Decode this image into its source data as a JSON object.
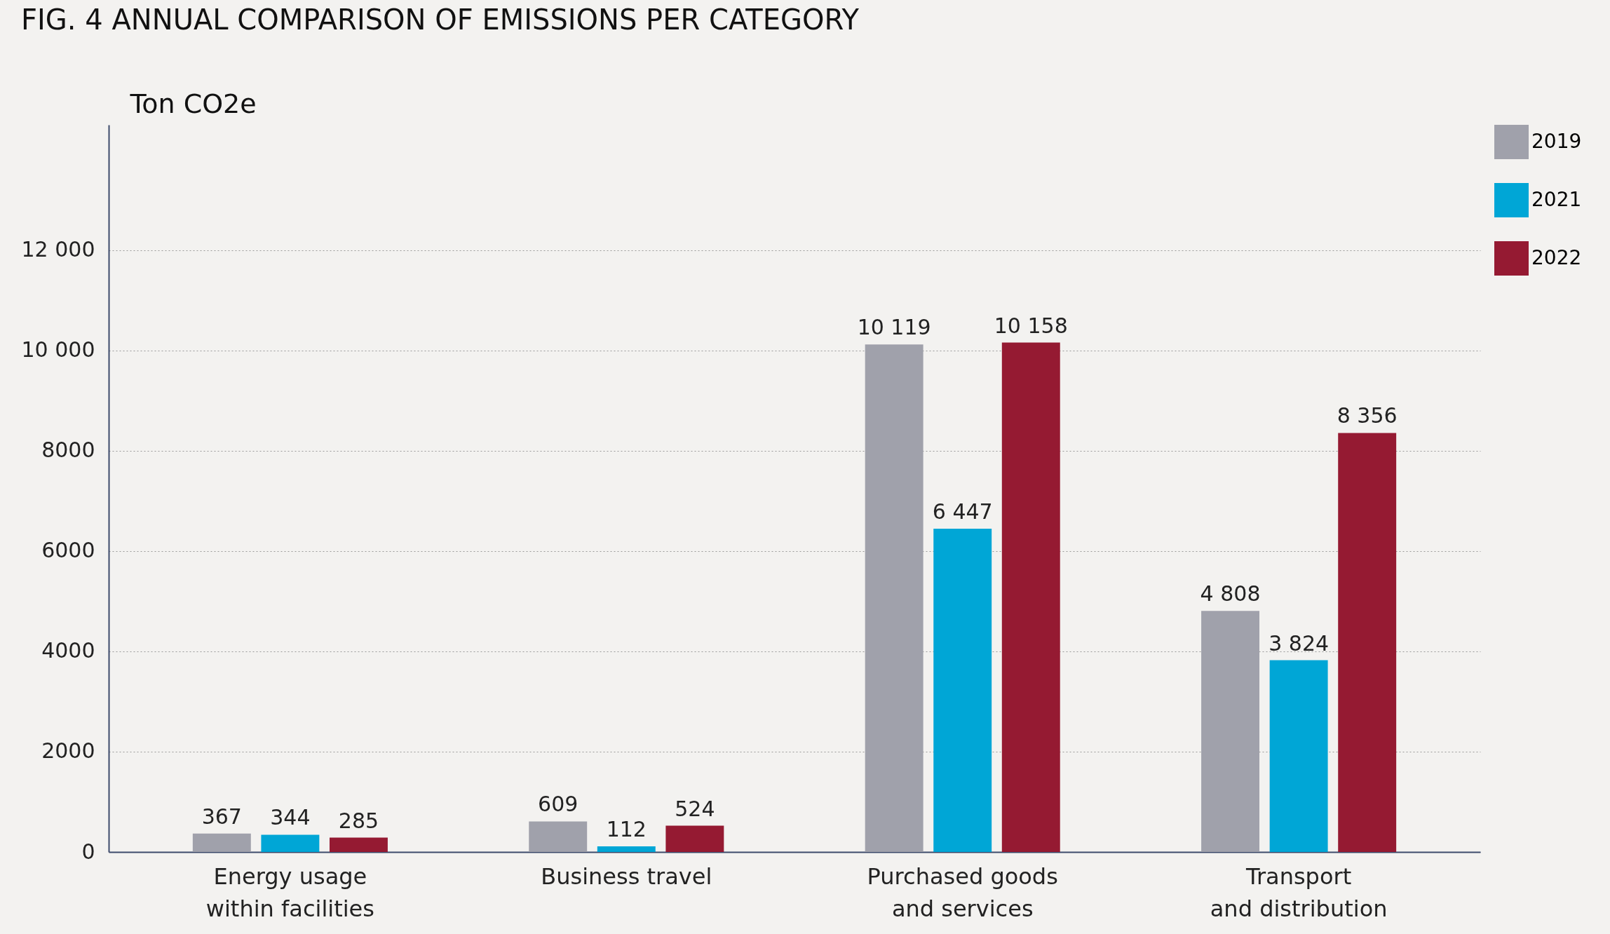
{
  "chart_data": {
    "type": "bar",
    "title": "FIG. 4 ANNUAL COMPARISON OF EMISSIONS PER CATEGORY",
    "ylabel": "Ton CO2e",
    "categories": [
      "Energy usage\nwithin facilities",
      "Business travel",
      "Purchased goods\nand services",
      "Transport\nand distribution"
    ],
    "series": [
      {
        "name": "2019",
        "color": "#a0a1ab",
        "values": [
          367,
          609,
          10119,
          4808
        ],
        "value_labels": [
          "367",
          "609",
          "10 119",
          "4 808"
        ]
      },
      {
        "name": "2021",
        "color": "#00a6d6",
        "values": [
          344,
          112,
          6447,
          3824
        ],
        "value_labels": [
          "344",
          "112",
          "6 447",
          "3 824"
        ]
      },
      {
        "name": "2022",
        "color": "#951a32",
        "values": [
          285,
          524,
          10158,
          8356
        ],
        "value_labels": [
          "285",
          "524",
          "10 158",
          "8 356"
        ]
      }
    ],
    "ylim": [
      0,
      14500
    ],
    "yticks": [
      0,
      {
        "value": 2000,
        "label": "2000"
      },
      4000,
      6000,
      8000,
      {
        "value": 10000,
        "label": "10 000"
      },
      {
        "value": 12000,
        "label": "12 000"
      }
    ],
    "grid": "y",
    "legend": "top right"
  }
}
